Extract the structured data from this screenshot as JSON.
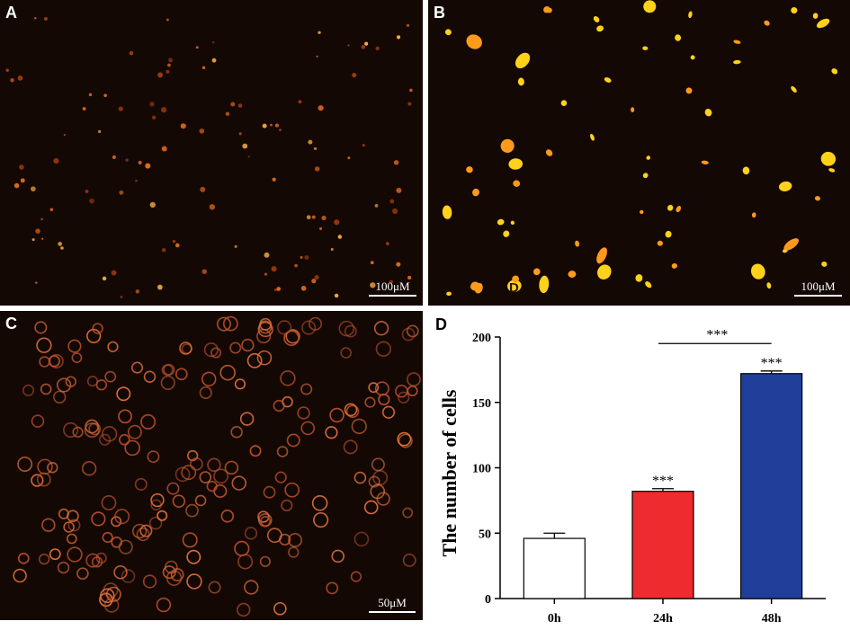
{
  "panels": {
    "a": {
      "label": "A",
      "scale_bar": "100μM"
    },
    "b": {
      "label": "B",
      "scale_bar": "100μM",
      "artifact_letter": "D"
    },
    "c": {
      "label": "C",
      "scale_bar": "50μM"
    },
    "d": {
      "label": "D"
    }
  },
  "colors": {
    "micrograph_bg": "#140805",
    "bar_0h": "#ffffff",
    "bar_24h": "#ee2b2e",
    "bar_48h": "#1f3f9b"
  },
  "chart_data": {
    "type": "bar",
    "categories": [
      "0h",
      "24h",
      "48h"
    ],
    "values": [
      46,
      82,
      172
    ],
    "errors": [
      4,
      2,
      2
    ],
    "significance": [
      "",
      "***",
      "***"
    ],
    "comparison": {
      "from": "24h",
      "to": "48h",
      "label": "***"
    },
    "ylabel": "The number of cells",
    "xlabel": "",
    "ylim": [
      0,
      200
    ],
    "yticks": [
      "0",
      "50",
      "100",
      "150",
      "200"
    ],
    "grid": false
  }
}
